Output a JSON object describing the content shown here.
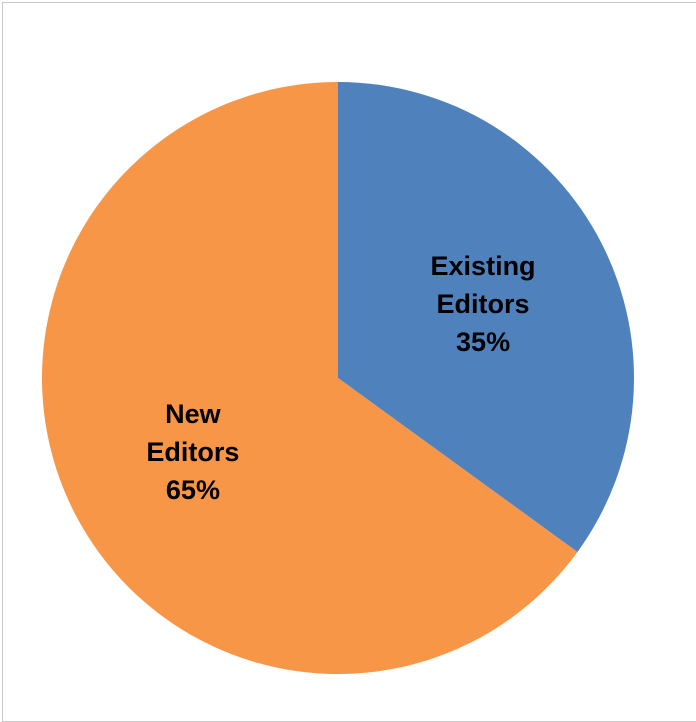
{
  "chart_data": {
    "type": "pie",
    "title": "",
    "start_angle_deg": 0,
    "direction": "clockwise",
    "slices": [
      {
        "name": "Existing Editors",
        "label_lines": [
          "Existing",
          "Editors"
        ],
        "value": 35,
        "value_label": "35%",
        "color": "#4F81BD"
      },
      {
        "name": "New Editors",
        "label_lines": [
          "New",
          "Editors"
        ],
        "value": 65,
        "value_label": "65%",
        "color": "#F79646"
      }
    ],
    "legend": "none"
  }
}
